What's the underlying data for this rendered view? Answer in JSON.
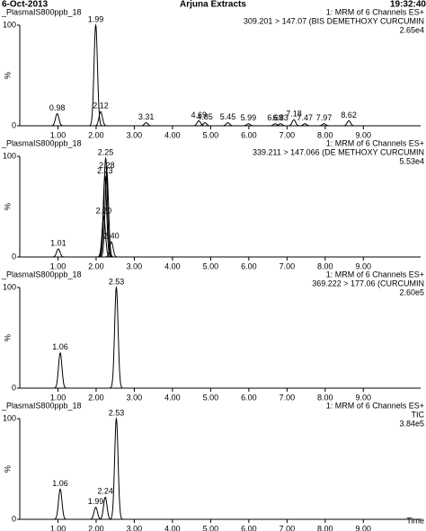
{
  "header": {
    "date": "6-Oct-2013",
    "title": "Arjuna Extracts",
    "time": "19:32:40"
  },
  "chart_data": [
    {
      "type": "peak",
      "sample": "_PlasmaIS800ppb_18",
      "channel": "1: MRM of 6 Channels ES+",
      "transition": "309.201 > 147.07 (BIS DEMETHOXY CURCUMIN",
      "scale": "2.65e4",
      "ylabel": "%",
      "xlim": [
        0,
        10.5
      ],
      "ylim": [
        0,
        100
      ],
      "yticks": [
        0,
        100
      ],
      "xticks": [
        {
          "value": 1,
          "label": "1.00"
        },
        {
          "value": 2,
          "label": "2.00"
        },
        {
          "value": 3,
          "label": "3.00"
        },
        {
          "value": 4,
          "label": "4.00"
        },
        {
          "value": 5,
          "label": "5.00"
        },
        {
          "value": 6,
          "label": "6.00"
        },
        {
          "value": 7,
          "label": "7.00"
        },
        {
          "value": 8,
          "label": "8.00"
        },
        {
          "value": 9,
          "label": "9.00"
        }
      ],
      "x": [
        0.98,
        1.99,
        2.12,
        3.31,
        4.69,
        4.85,
        5.45,
        5.99,
        6.69,
        6.83,
        7.18,
        7.47,
        7.97,
        8.62
      ],
      "x_labels": [
        "0.98",
        "1.99",
        "2.12",
        "3.31",
        "4.69",
        "4.85",
        "5.45",
        "5.99",
        "6.69",
        "6.83",
        "7.18",
        "7.47",
        "7.97",
        "8.62"
      ],
      "values": [
        12,
        100,
        14,
        3,
        5,
        3,
        3,
        2,
        2,
        2,
        6,
        2,
        2,
        5
      ],
      "color": "#000000"
    },
    {
      "type": "peak",
      "sample": "_PlasmaIS800ppb_18",
      "channel": "1: MRM of 6 Channels ES+",
      "transition": "339.211 > 147.066 (DE METHOXY CURCUMIN",
      "scale": "5.53e4",
      "ylabel": "%",
      "xlim": [
        0,
        10.5
      ],
      "ylim": [
        0,
        100
      ],
      "yticks": [
        0,
        100
      ],
      "xticks": [
        {
          "value": 1,
          "label": "1.00"
        },
        {
          "value": 2,
          "label": "2.00"
        },
        {
          "value": 3,
          "label": "3.00"
        },
        {
          "value": 4,
          "label": "4.00"
        },
        {
          "value": 5,
          "label": "5.00"
        },
        {
          "value": 6,
          "label": "6.00"
        },
        {
          "value": 7,
          "label": "7.00"
        },
        {
          "value": 8,
          "label": "8.00"
        },
        {
          "value": 9,
          "label": "9.00"
        }
      ],
      "x": [
        1.01,
        2.2,
        2.23,
        2.25,
        2.28,
        2.4
      ],
      "x_labels": [
        "1.01",
        "2.20",
        "2.23",
        "2.25",
        "2.28",
        "2.40"
      ],
      "values": [
        8,
        40,
        80,
        98,
        85,
        15
      ],
      "color": "#000000"
    },
    {
      "type": "peak",
      "sample": "_PlasmaIS800ppb_18",
      "channel": "1: MRM of 6 Channels ES+",
      "transition": "369.222 > 177.06 (CURCUMIN",
      "scale": "2.60e5",
      "ylabel": "%",
      "xlim": [
        0,
        10.5
      ],
      "ylim": [
        0,
        100
      ],
      "yticks": [
        0,
        100
      ],
      "xticks": [
        {
          "value": 1,
          "label": "1.00"
        },
        {
          "value": 2,
          "label": "2.00"
        },
        {
          "value": 3,
          "label": "3.00"
        },
        {
          "value": 4,
          "label": "4.00"
        },
        {
          "value": 5,
          "label": "5.00"
        },
        {
          "value": 6,
          "label": "6.00"
        },
        {
          "value": 7,
          "label": "7.00"
        },
        {
          "value": 8,
          "label": "8.00"
        },
        {
          "value": 9,
          "label": "9.00"
        }
      ],
      "x": [
        1.06,
        2.53
      ],
      "x_labels": [
        "1.06",
        "2.53"
      ],
      "values": [
        35,
        100
      ],
      "color": "#000000"
    },
    {
      "type": "peak",
      "sample": "_PlasmaIS800ppb_18",
      "channel": "1: MRM of 6 Channels ES+",
      "transition": "TIC",
      "scale": "3.84e5",
      "ylabel": "%",
      "xlabel": "Time",
      "xlim": [
        0,
        10.5
      ],
      "ylim": [
        0,
        100
      ],
      "yticks": [
        0,
        100
      ],
      "xticks": [
        {
          "value": 1,
          "label": "1.00"
        },
        {
          "value": 2,
          "label": "2.00"
        },
        {
          "value": 3,
          "label": "3.00"
        },
        {
          "value": 4,
          "label": "4.00"
        },
        {
          "value": 5,
          "label": "5.00"
        },
        {
          "value": 6,
          "label": "6.00"
        },
        {
          "value": 7,
          "label": "7.00"
        },
        {
          "value": 8,
          "label": "8.00"
        },
        {
          "value": 9,
          "label": "9.00"
        }
      ],
      "x": [
        1.06,
        1.99,
        2.24,
        2.53
      ],
      "x_labels": [
        "1.06",
        "1.99",
        "2.24",
        "2.53"
      ],
      "values": [
        30,
        12,
        22,
        100
      ],
      "color": "#000000"
    }
  ]
}
